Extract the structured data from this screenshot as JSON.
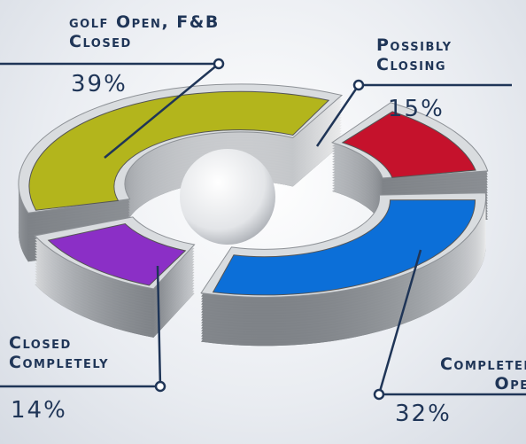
{
  "chart_data": {
    "type": "pie",
    "categories": [
      "golf Open, F&B Closed",
      "Possibly Closing",
      "Completely Open",
      "Closed Completely"
    ],
    "values": [
      39,
      15,
      32,
      14
    ],
    "value_labels": [
      "39%",
      "15%",
      "32%",
      "14%"
    ],
    "colors": [
      "#b3b51c",
      "#c5122c",
      "#0c6fd8",
      "#8b2fc6"
    ]
  }
}
